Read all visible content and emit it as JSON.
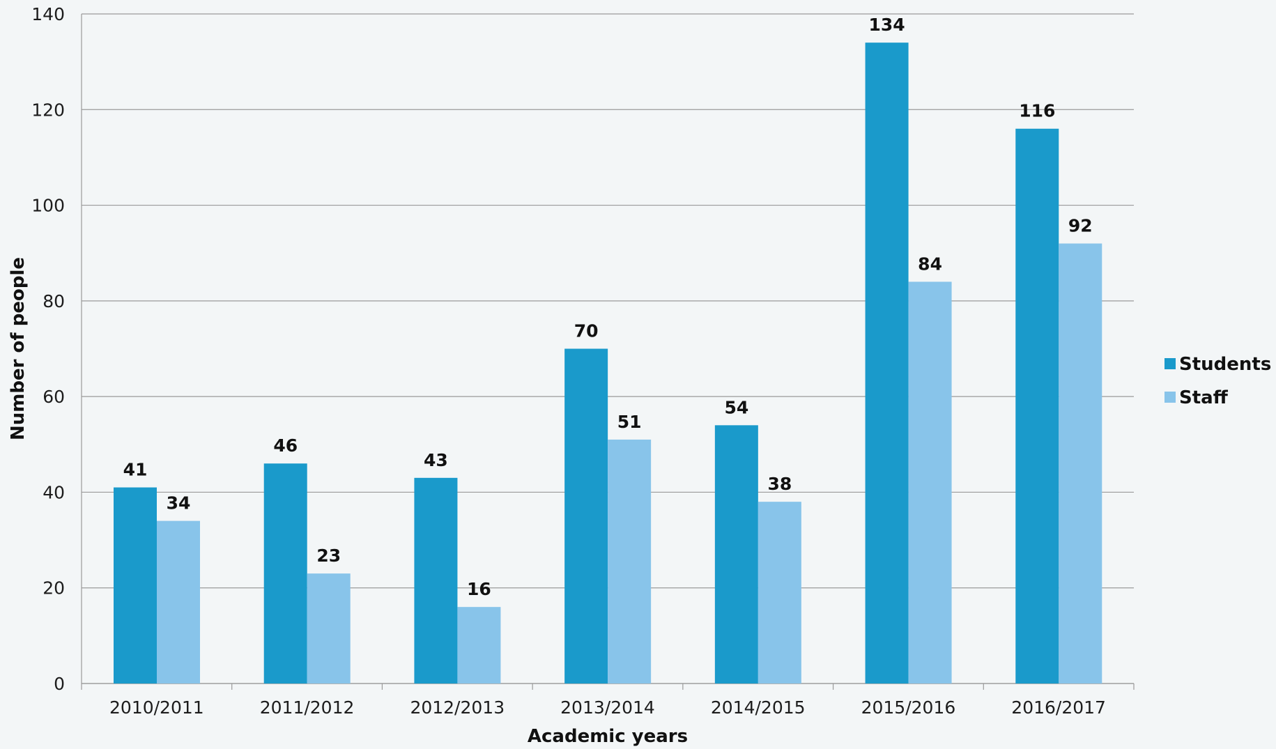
{
  "chart_data": {
    "type": "bar",
    "categories": [
      "2010/2011",
      "2011/2012",
      "2012/2013",
      "2013/2014",
      "2014/2015",
      "2015/2016",
      "2016/2017"
    ],
    "series": [
      {
        "name": "Students",
        "values": [
          41,
          46,
          43,
          70,
          54,
          134,
          116
        ],
        "color": "#1a9acb"
      },
      {
        "name": "Staff",
        "values": [
          34,
          23,
          16,
          51,
          38,
          84,
          92
        ],
        "color": "#88c4ea"
      }
    ],
    "xlabel": "Academic years",
    "ylabel": "Number of people",
    "ylim": [
      0,
      140
    ],
    "yticks": [
      0,
      20,
      40,
      60,
      80,
      100,
      120,
      140
    ],
    "grid": true,
    "legend_position": "right",
    "data_labels": true
  }
}
